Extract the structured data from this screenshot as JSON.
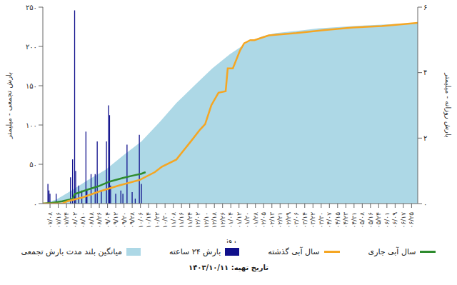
{
  "chart_data": {
    "type": "combo",
    "x_label": "روز",
    "y_label": "بارش تجمعی - میلیمتر",
    "y2_label": "بارش روزانه - میلیمتر",
    "annotations": [
      "تاریخ تهیه: ۱۴۰۳/۱۰/۱۱"
    ],
    "legend": "bottom",
    "grid": false,
    "xlim": [
      1,
      366
    ],
    "xticks": [
      {
        "value": 8,
        "label": "۰۷/۰۸"
      },
      {
        "value": 16,
        "label": "۰۷/۱۶"
      },
      {
        "value": 24,
        "label": "۰۷/۲۴"
      },
      {
        "value": 32,
        "label": "۰۸/۰۲"
      },
      {
        "value": 40,
        "label": "۰۸/۱۰"
      },
      {
        "value": 48,
        "label": "۰۸/۱۸"
      },
      {
        "value": 56,
        "label": "۰۸/۲۶"
      },
      {
        "value": 64,
        "label": "۰۹/۰۴"
      },
      {
        "value": 72,
        "label": "۰۹/۱۲"
      },
      {
        "value": 80,
        "label": "۰۹/۲۰"
      },
      {
        "value": 88,
        "label": "۰۹/۲۸"
      },
      {
        "value": 96,
        "label": "۱۰/۰۶"
      },
      {
        "value": 104,
        "label": "۱۰/۱۴"
      },
      {
        "value": 112,
        "label": "۱۰/۲۲"
      },
      {
        "value": 120,
        "label": "۱۰/۳۰"
      },
      {
        "value": 128,
        "label": "۱۱/۰۸"
      },
      {
        "value": 136,
        "label": "۱۱/۱۶"
      },
      {
        "value": 144,
        "label": "۱۱/۲۴"
      },
      {
        "value": 152,
        "label": "۱۲/۰۲"
      },
      {
        "value": 160,
        "label": "۱۲/۱۰"
      },
      {
        "value": 168,
        "label": "۱۲/۱۸"
      },
      {
        "value": 176,
        "label": "۱۲/۲۶"
      },
      {
        "value": 184,
        "label": "۰۱/۰۴"
      },
      {
        "value": 192,
        "label": "۰۱/۱۲"
      },
      {
        "value": 200,
        "label": "۰۱/۲۰"
      },
      {
        "value": 208,
        "label": "۰۱/۲۸"
      },
      {
        "value": 216,
        "label": "۰۲/۰۵"
      },
      {
        "value": 224,
        "label": "۰۲/۱۳"
      },
      {
        "value": 232,
        "label": "۰۲/۲۱"
      },
      {
        "value": 240,
        "label": "۰۲/۲۹"
      },
      {
        "value": 248,
        "label": "۰۳/۰۶"
      },
      {
        "value": 256,
        "label": "۰۳/۱۴"
      },
      {
        "value": 264,
        "label": "۰۳/۲۲"
      },
      {
        "value": 272,
        "label": "۰۳/۳۰"
      },
      {
        "value": 280,
        "label": "۰۴/۰۷"
      },
      {
        "value": 288,
        "label": "۰۴/۱۵"
      },
      {
        "value": 296,
        "label": "۰۴/۲۳"
      },
      {
        "value": 304,
        "label": "۰۴/۳۱"
      },
      {
        "value": 312,
        "label": "۰۵/۰۸"
      },
      {
        "value": 320,
        "label": "۰۵/۱۶"
      },
      {
        "value": 328,
        "label": "۰۵/۲۴"
      },
      {
        "value": 336,
        "label": "۰۶/۰۱"
      },
      {
        "value": 344,
        "label": "۰۶/۰۹"
      },
      {
        "value": 352,
        "label": "۰۶/۱۷"
      },
      {
        "value": 360,
        "label": "۰۶/۲۵"
      }
    ],
    "ylim": [
      0,
      250
    ],
    "yticks": [
      {
        "value": 0,
        "label": "۰"
      },
      {
        "value": 50,
        "label": "۵۰"
      },
      {
        "value": 100,
        "label": "۱۰۰"
      },
      {
        "value": 150,
        "label": "۱۵۰"
      },
      {
        "value": 200,
        "label": "۲۰۰"
      },
      {
        "value": 250,
        "label": "۲۵۰"
      }
    ],
    "y2lim": [
      0,
      6
    ],
    "y2ticks": [
      {
        "value": 0,
        "label": "۰"
      },
      {
        "value": 2,
        "label": "۲"
      },
      {
        "value": 4,
        "label": "۴"
      },
      {
        "value": 6,
        "label": "۶"
      }
    ],
    "series": [
      {
        "name": "سال آبی جاری",
        "type": "line",
        "color": "#2e8b2e",
        "x": [
          1,
          10,
          20,
          30,
          32,
          45,
          55,
          66,
          80,
          90,
          97,
          101
        ],
        "values": [
          0,
          1,
          3,
          6,
          12,
          18,
          22,
          28,
          33,
          36,
          38,
          40
        ]
      },
      {
        "name": "سال آبی گذشته",
        "type": "line",
        "color": "#f5a623",
        "x": [
          1,
          20,
          25,
          40,
          55,
          75,
          95,
          110,
          117,
          131,
          145,
          154,
          159,
          165,
          172,
          179,
          181,
          186,
          193,
          197,
          203,
          207,
          221,
          248,
          276,
          303,
          331,
          366
        ],
        "values": [
          0,
          0,
          3,
          8,
          15,
          23,
          30,
          40,
          47,
          56,
          79,
          94,
          101,
          125,
          141,
          143,
          172,
          172,
          195,
          204,
          208,
          208,
          214,
          217,
          221,
          224,
          226,
          230
        ]
      },
      {
        "name": "بارش ۲۴ ساعته",
        "type": "bar",
        "axis": "y2",
        "color": "#10108c",
        "x": [
          6,
          7,
          8,
          14,
          28,
          30,
          32,
          33,
          36,
          39,
          43,
          44,
          48,
          52,
          54,
          58,
          63,
          65,
          66,
          67,
          72,
          77,
          79,
          83,
          88,
          91,
          95,
          97
        ],
        "values": [
          0.6,
          0.4,
          0.3,
          0.3,
          0.8,
          1.35,
          5.9,
          1.0,
          0.55,
          0.4,
          2.2,
          0.4,
          0.9,
          0.9,
          1.9,
          0.4,
          1.9,
          3.0,
          2.7,
          0.55,
          0.3,
          0.4,
          0.3,
          1.8,
          0.35,
          0.15,
          2.1,
          0.6
        ]
      },
      {
        "name": "میانگین بلند مدت بارش تجمعی",
        "type": "area",
        "color": "#add8e6",
        "x": [
          1,
          14,
          28,
          45,
          62,
          80,
          97,
          115,
          131,
          150,
          166,
          183,
          200,
          215,
          228,
          250,
          269,
          303,
          335,
          366
        ],
        "values": [
          0,
          5,
          16,
          30,
          43,
          62,
          79,
          104,
          128,
          152,
          172,
          190,
          205,
          213,
          217,
          220,
          223,
          226,
          228,
          230
        ]
      }
    ]
  }
}
